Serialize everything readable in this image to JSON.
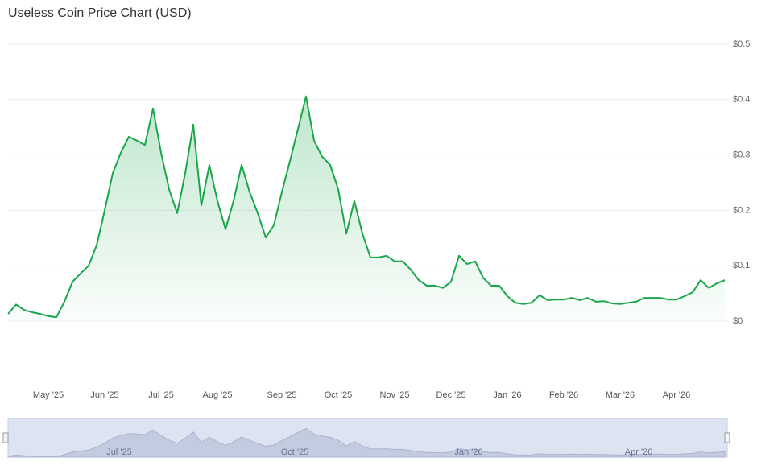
{
  "chart_data": {
    "type": "line",
    "title": "Useless Coin Price Chart (USD)",
    "categories": [
      null,
      null,
      null,
      null,
      null,
      "May '25",
      null,
      null,
      null,
      null,
      null,
      null,
      "Jun '25",
      null,
      null,
      null,
      null,
      null,
      null,
      "Jul '25",
      null,
      null,
      null,
      null,
      null,
      null,
      "Aug '25",
      null,
      null,
      null,
      null,
      null,
      null,
      null,
      "Sep '25",
      null,
      null,
      null,
      null,
      null,
      null,
      "Oct '25",
      null,
      null,
      null,
      null,
      null,
      null,
      "Nov '25",
      null,
      null,
      null,
      null,
      null,
      null,
      "Dec '25",
      null,
      null,
      null,
      null,
      null,
      null,
      "Jan '26",
      null,
      null,
      null,
      null,
      null,
      null,
      "Feb '26",
      null,
      null,
      null,
      null,
      null,
      null,
      "Mar '26",
      null,
      null,
      null,
      null,
      null,
      null,
      "Apr '26",
      null,
      null,
      null,
      null,
      null,
      null
    ],
    "series": [
      {
        "name": "Price",
        "color": "#1aa64b",
        "values": [
          0.013,
          0.03,
          0.02,
          0.016,
          0.013,
          0.009,
          0.007,
          0.035,
          0.071,
          0.086,
          0.1,
          0.137,
          0.2,
          0.267,
          0.304,
          0.333,
          0.326,
          0.318,
          0.384,
          0.304,
          0.238,
          0.195,
          0.267,
          0.355,
          0.209,
          0.282,
          0.217,
          0.166,
          0.217,
          0.282,
          0.233,
          0.195,
          0.151,
          0.173,
          0.233,
          0.289,
          0.347,
          0.406,
          0.326,
          0.297,
          0.282,
          0.238,
          0.158,
          0.217,
          0.158,
          0.115,
          0.115,
          0.118,
          0.108,
          0.108,
          0.093,
          0.074,
          0.064,
          0.064,
          0.06,
          0.071,
          0.118,
          0.103,
          0.108,
          0.078,
          0.064,
          0.064,
          0.045,
          0.033,
          0.031,
          0.033,
          0.047,
          0.038,
          0.039,
          0.039,
          0.042,
          0.038,
          0.042,
          0.035,
          0.036,
          0.032,
          0.031,
          0.033,
          0.035,
          0.042,
          0.042,
          0.042,
          0.039,
          0.039,
          0.045,
          0.052,
          0.074,
          0.06,
          0.068,
          0.074
        ]
      }
    ],
    "ylim": [
      0,
      0.5
    ],
    "yticks": [
      {
        "value": 0,
        "label": "$0"
      },
      {
        "value": 0.1,
        "label": "$0.1"
      },
      {
        "value": 0.2,
        "label": "$0.2"
      },
      {
        "value": 0.3,
        "label": "$0.3"
      },
      {
        "value": 0.4,
        "label": "$0.4"
      },
      {
        "value": 0.5,
        "label": "$0.5"
      }
    ],
    "grid": true,
    "navigator_labels": [
      "Jul '25",
      "Oct '25",
      "Jan '26",
      "Apr '26"
    ]
  }
}
